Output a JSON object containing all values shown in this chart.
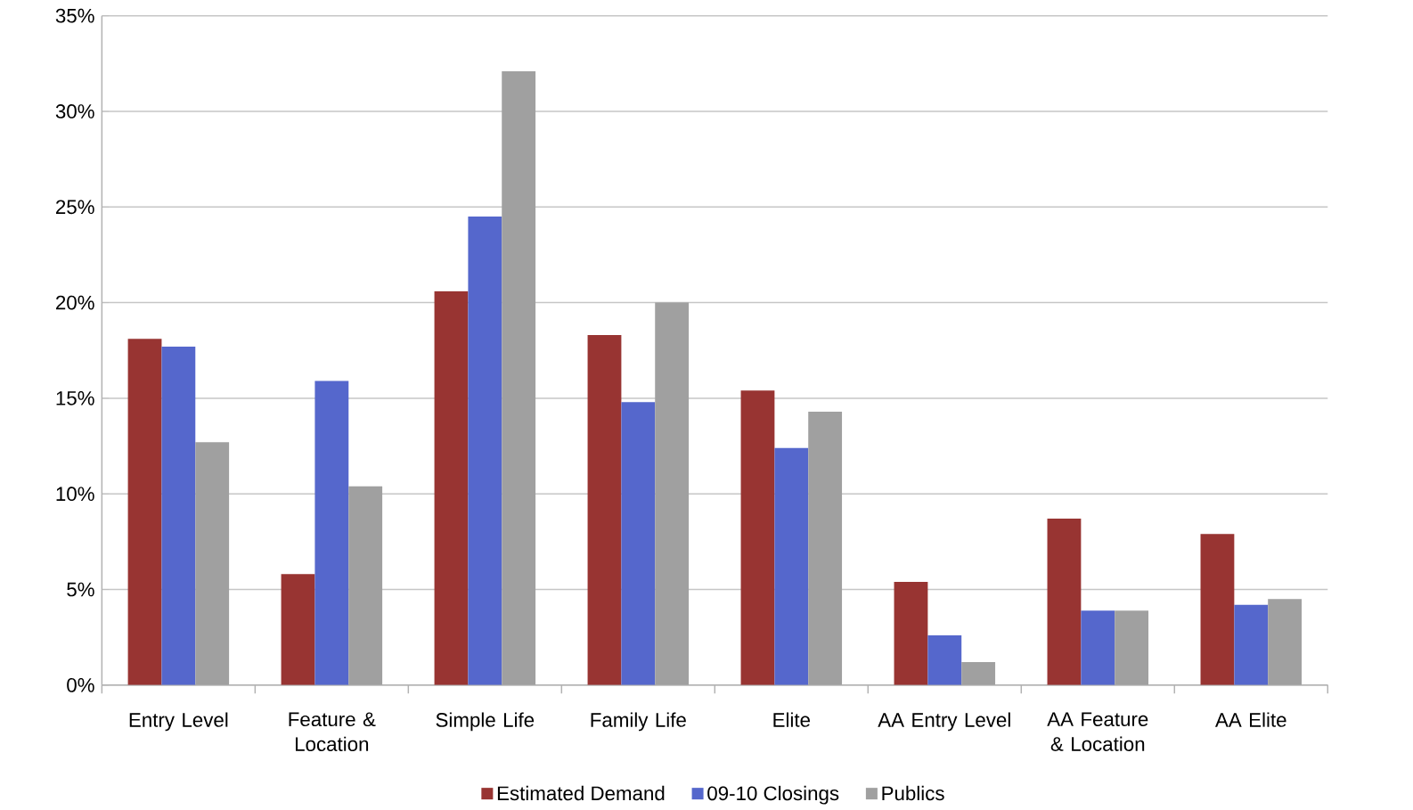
{
  "chart_data": {
    "type": "bar",
    "categories": [
      "Entry Level",
      "Feature & Location",
      "Simple Life",
      "Family Life",
      "Elite",
      "AA Entry Level",
      "AA Feature & Location",
      "AA Elite"
    ],
    "series": [
      {
        "name": "Estimated Demand",
        "color": "#983432",
        "values": [
          18.1,
          5.8,
          20.6,
          18.3,
          15.4,
          5.4,
          8.7,
          7.9
        ]
      },
      {
        "name": "09-10 Closings",
        "color": "#5567cc",
        "values": [
          17.7,
          15.9,
          24.5,
          14.8,
          12.4,
          2.6,
          3.9,
          4.2
        ]
      },
      {
        "name": "Publics",
        "color": "#a0a0a0",
        "values": [
          12.7,
          10.4,
          32.1,
          20.0,
          14.3,
          1.2,
          3.9,
          4.5
        ]
      }
    ],
    "ylim": [
      0,
      35
    ],
    "yticks": [
      {
        "value": 0,
        "label": "0%"
      },
      {
        "value": 5,
        "label": "5%"
      },
      {
        "value": 10,
        "label": "10%"
      },
      {
        "value": 15,
        "label": "15%"
      },
      {
        "value": 20,
        "label": "20%"
      },
      {
        "value": 25,
        "label": "25%"
      },
      {
        "value": 30,
        "label": "30%"
      },
      {
        "value": 35,
        "label": "35%"
      }
    ],
    "grid": "y",
    "legend": "bottom"
  }
}
